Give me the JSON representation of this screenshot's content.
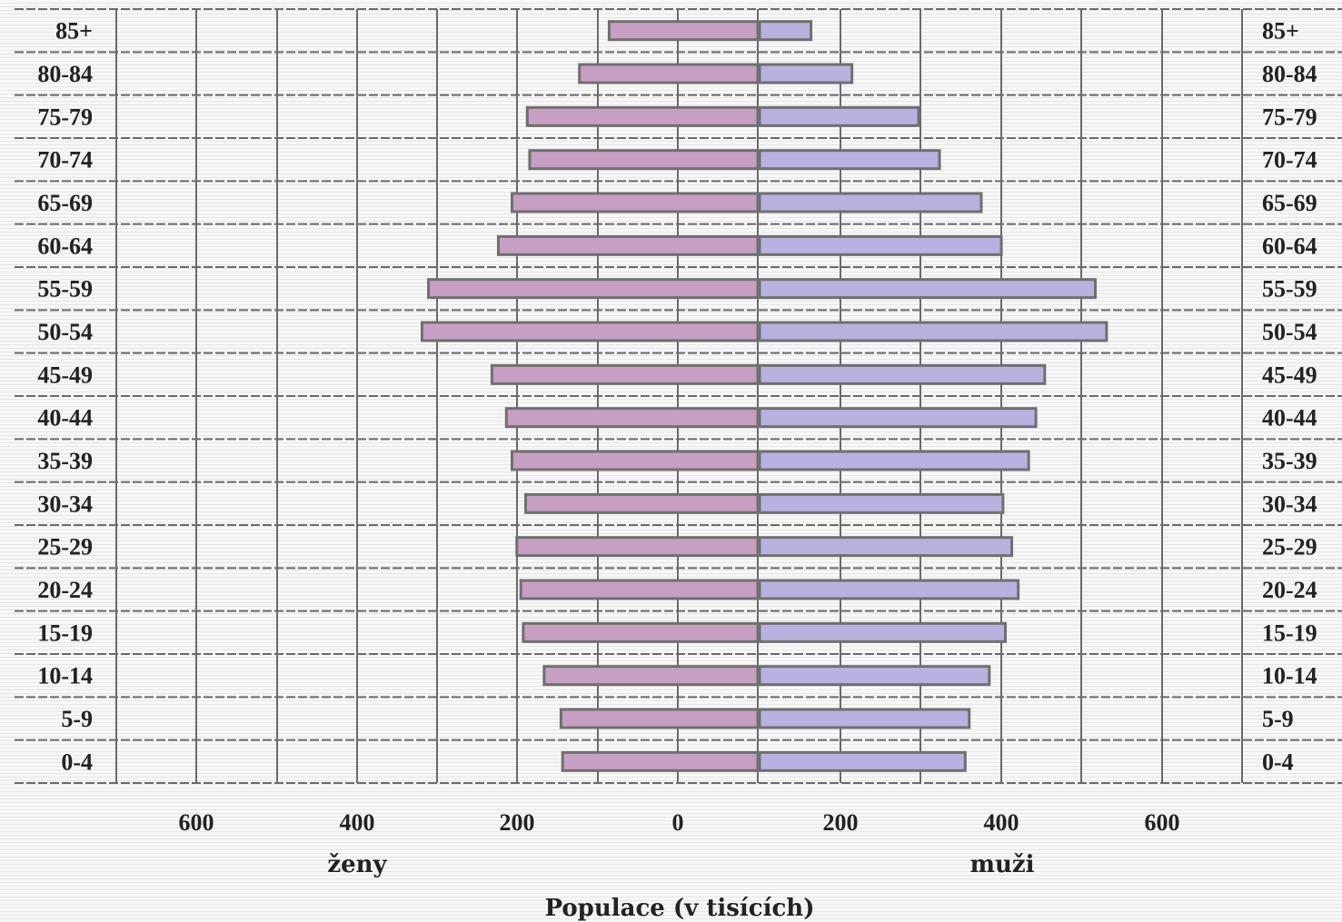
{
  "chart_data": {
    "type": "bar",
    "subtype": "population-pyramid",
    "categories": [
      "85+",
      "80-84",
      "75-79",
      "70-74",
      "65-69",
      "60-64",
      "55-59",
      "50-54",
      "45-49",
      "40-44",
      "35-39",
      "30-34",
      "25-29",
      "20-24",
      "15-19",
      "10-14",
      "5-9",
      "0-4"
    ],
    "series": [
      {
        "name": "ženy",
        "side": "left",
        "values": [
          185,
          222,
          287,
          284,
          306,
          323,
          410,
          418,
          331,
          313,
          306,
          289,
          300,
          295,
          292,
          266,
          245,
          243
        ]
      },
      {
        "name": "muži",
        "side": "right",
        "values": [
          64,
          115,
          198,
          224,
          276,
          301,
          418,
          432,
          355,
          344,
          335,
          303,
          314,
          322,
          306,
          286,
          261,
          256
        ]
      }
    ],
    "x_tick_labels": [
      "600",
      "400",
      "200",
      "0",
      "200",
      "400",
      "600"
    ],
    "side_labels": {
      "left": "ženy",
      "right": "muži"
    },
    "xlabel": "Populace (v tisících)",
    "xlim": [
      -800,
      800
    ],
    "grid": true,
    "colors": {
      "left_fill": "#c79fc2",
      "right_fill": "#b7b2df",
      "bar_stroke": "#6f6f6f",
      "grid": "#6a6a6a"
    }
  }
}
